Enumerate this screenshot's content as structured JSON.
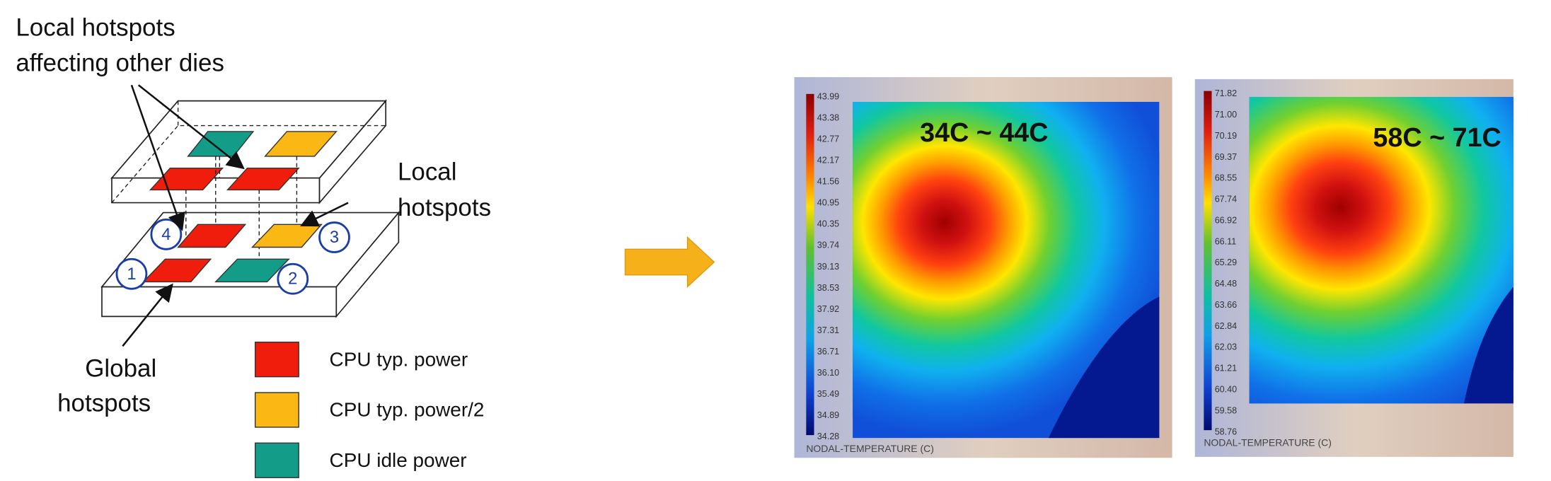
{
  "callouts": [
    {
      "lines": [
        "Local hotspots",
        "affecting other dies"
      ]
    },
    {
      "lines": [
        "Local",
        "hotspots"
      ]
    },
    {
      "lines": [
        "Global",
        "hotspots"
      ]
    }
  ],
  "die_numbers": [
    "1",
    "2",
    "3",
    "4"
  ],
  "legend": [
    {
      "label": "CPU typ. power"
    },
    {
      "label": "CPU typ. power/2"
    },
    {
      "label": "CPU idle power"
    }
  ],
  "thermal_maps": [
    {
      "range": "34C ~ 44C",
      "axis_label": "NODAL-TEMPERATURE (C)",
      "scale": [
        "43.99",
        "43.38",
        "42.77",
        "42.17",
        "41.56",
        "40.95",
        "40.35",
        "39.74",
        "39.13",
        "38.53",
        "37.92",
        "37.31",
        "36.71",
        "36.10",
        "35.49",
        "34.89",
        "34.28"
      ]
    },
    {
      "range": "58C ~ 71C",
      "axis_label": "NODAL-TEMPERATURE (C)",
      "scale": [
        "71.82",
        "71.00",
        "70.19",
        "69.37",
        "68.55",
        "67.74",
        "66.92",
        "66.11",
        "65.29",
        "64.48",
        "63.66",
        "62.84",
        "62.03",
        "61.21",
        "60.40",
        "59.58",
        "58.76"
      ]
    }
  ]
}
